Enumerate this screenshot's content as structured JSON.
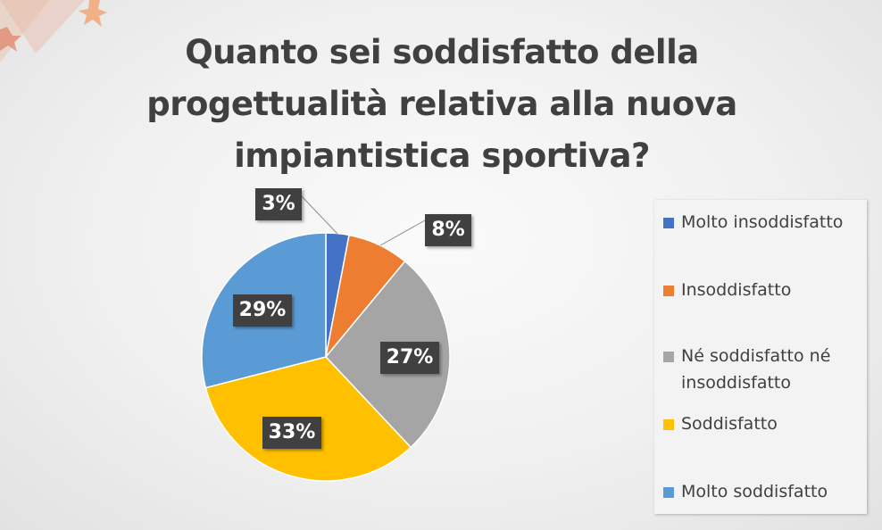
{
  "chart_data": {
    "type": "pie",
    "title": "Quanto sei soddisfatto della progettualità relativa alla nuova impiantistica sportiva?",
    "legend_position": "right",
    "slices": [
      {
        "label": "Molto insoddisfatto",
        "value": 3,
        "value_label": "3%",
        "color": "#4472C4"
      },
      {
        "label": "Insoddisfatto",
        "value": 8,
        "value_label": "8%",
        "color": "#ED7D31"
      },
      {
        "label": "Né soddisfatto né insoddisfatto",
        "value": 27,
        "value_label": "27%",
        "color": "#A5A5A5"
      },
      {
        "label": "Soddisfatto",
        "value": 33,
        "value_label": "33%",
        "color": "#FFC000"
      },
      {
        "label": "Molto soddisfatto",
        "value": 29,
        "value_label": "29%",
        "color": "#5B9BD5"
      }
    ]
  }
}
